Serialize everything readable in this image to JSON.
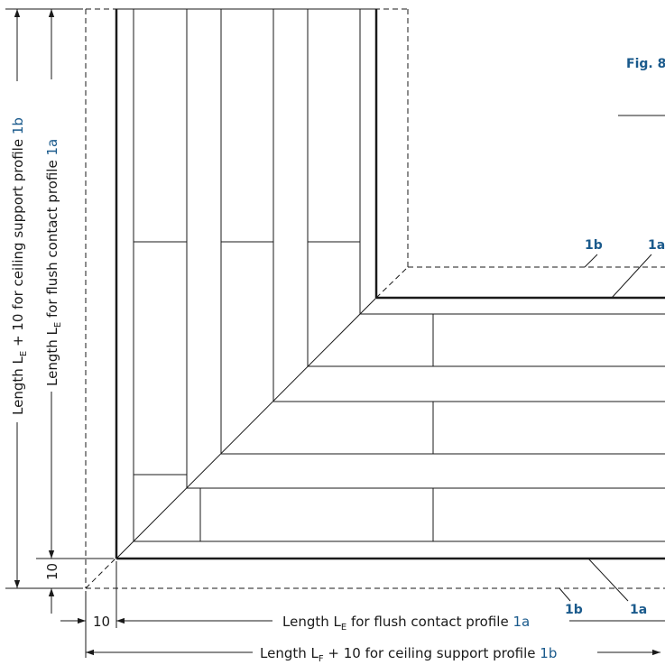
{
  "figure_label": "Fig. 8",
  "colors": {
    "line": "#1a1a1a",
    "accent": "#1a5a8c",
    "background": "#ffffff"
  },
  "callouts": {
    "top_1b": "1b",
    "top_1a": "1a",
    "bottom_1b": "1b",
    "bottom_1a": "1a"
  },
  "dimensions": {
    "offset_horizontal": "10",
    "offset_vertical": "10",
    "horizontal_flush": {
      "prefix": "Length L",
      "subscript": "E",
      "suffix": " for flush contact profile ",
      "ref": "1a"
    },
    "horizontal_ceiling": {
      "prefix": "Length L",
      "subscript": "F",
      "suffix": " + 10 for ceiling support profile ",
      "ref": "1b"
    },
    "vertical_flush": {
      "prefix": "Length L",
      "subscript": "E",
      "suffix": " for flush contact profile ",
      "ref": "1a"
    },
    "vertical_ceiling": {
      "prefix": "Length L",
      "subscript": "E",
      "suffix": " + 10 for ceiling support profile ",
      "ref": "1b"
    }
  }
}
